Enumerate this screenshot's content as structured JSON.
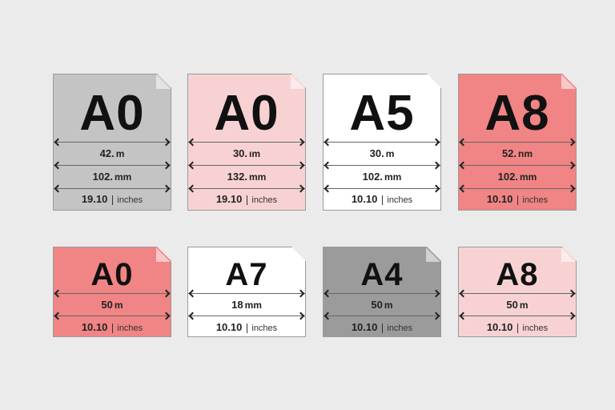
{
  "colors": {
    "background": "#ebebeb",
    "gray": "#c4c4c4",
    "dark_gray": "#9b9b9b",
    "light_pink": "#f8d2d2",
    "red": "#f18484",
    "white": "#ffffff"
  },
  "top_row": [
    {
      "label": "A0",
      "color": "#c4c4c4",
      "rows": [
        {
          "value": "42.",
          "unit": "m"
        },
        {
          "value": "102.",
          "unit": "mm"
        },
        {
          "value": "19.10",
          "unit": "inches"
        }
      ]
    },
    {
      "label": "A0",
      "color": "#f8d2d2",
      "rows": [
        {
          "value": "30.",
          "unit": "ım"
        },
        {
          "value": "132.",
          "unit": "mm"
        },
        {
          "value": "19.10",
          "unit": "inches"
        }
      ]
    },
    {
      "label": "A5",
      "color": "#ffffff",
      "rows": [
        {
          "value": "30.",
          "unit": "m"
        },
        {
          "value": "102.",
          "unit": "mm"
        },
        {
          "value": "10.10",
          "unit": "inches"
        }
      ]
    },
    {
      "label": "A8",
      "color": "#f18484",
      "rows": [
        {
          "value": "52.",
          "unit": "nm"
        },
        {
          "value": "102.",
          "unit": "mm"
        },
        {
          "value": "10.10",
          "unit": "inches"
        }
      ]
    }
  ],
  "bottom_row": [
    {
      "label": "A0",
      "color": "#f18484",
      "rows": [
        {
          "value": "50",
          "unit": "m"
        },
        {
          "value": "10.10",
          "unit": "inches"
        }
      ]
    },
    {
      "label": "A7",
      "color": "#ffffff",
      "rows": [
        {
          "value": "18",
          "unit": "mm"
        },
        {
          "value": "10.10",
          "unit": "inches"
        }
      ]
    },
    {
      "label": "A4",
      "color": "#9b9b9b",
      "rows": [
        {
          "value": "50",
          "unit": "m"
        },
        {
          "value": "10.10",
          "unit": "inches"
        }
      ]
    },
    {
      "label": "A8",
      "color": "#f8d2d2",
      "rows": [
        {
          "value": "50",
          "unit": "m"
        },
        {
          "value": "10.10",
          "unit": "inches"
        }
      ]
    }
  ]
}
